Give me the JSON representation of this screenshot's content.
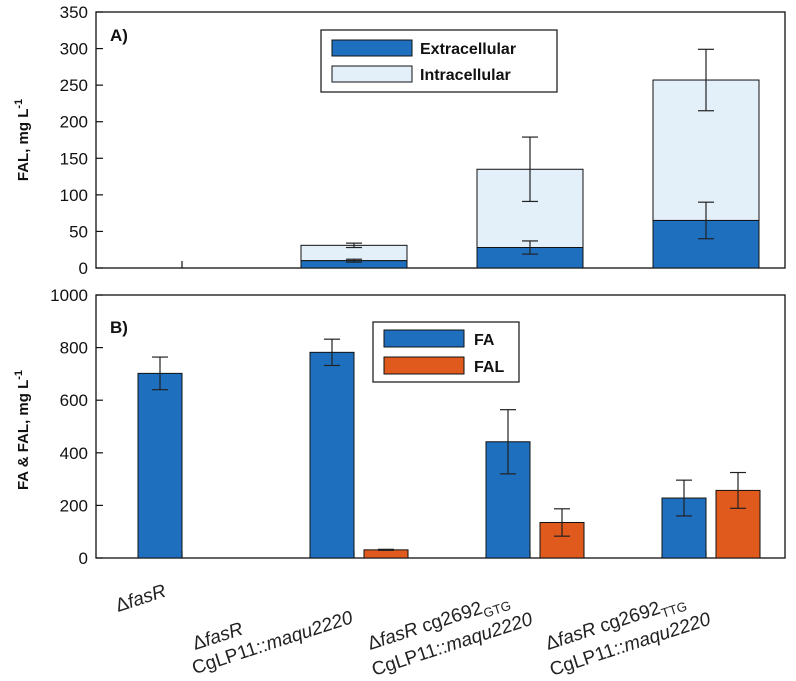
{
  "colors": {
    "fa": "#1f6fbf",
    "fal": "#e05a1e",
    "extracellular": "#1f6fbf",
    "intracellular": "#e3eff9",
    "axis": "#111111"
  },
  "categories": [
    {
      "delta": "Δ",
      "name": "fasR",
      "line2a": "",
      "line2b": ""
    },
    {
      "delta": "Δ",
      "name": "fasR",
      "line2a": "CgLP11::",
      "line2b": "maqu2220"
    },
    {
      "delta": "Δ",
      "name": "fasR",
      "gene": " cg2692",
      "sub": "GTG",
      "line2a": "CgLP11::",
      "line2b": "maqu2220"
    },
    {
      "delta": "Δ",
      "name": "fasR",
      "gene": " cg2692",
      "sub": "TTG",
      "line2a": "CgLP11::",
      "line2b": "maqu2220"
    }
  ],
  "chart_data": [
    {
      "type": "bar",
      "stacked": true,
      "panel_label": "A)",
      "ylabel": "FAL,   mg L",
      "ylabel_sup": "-1",
      "ylim": [
        0,
        350
      ],
      "yticks": [
        0,
        50,
        100,
        150,
        200,
        250,
        300,
        350
      ],
      "legend_position": "top-center",
      "series": [
        {
          "name": "Extracellular",
          "values": [
            0,
            10,
            28,
            65
          ],
          "err": [
            0,
            2,
            9,
            25
          ]
        },
        {
          "name": "Intracellular",
          "values": [
            0,
            21,
            107,
            192
          ],
          "err": [
            0,
            3,
            44,
            42
          ]
        }
      ]
    },
    {
      "type": "bar",
      "stacked": false,
      "panel_label": "B)",
      "ylabel": "FA & FAL,  mg L",
      "ylabel_sup": "-1",
      "ylim": [
        0,
        1000
      ],
      "yticks": [
        0,
        200,
        400,
        600,
        800,
        1000
      ],
      "legend_position": "top-center",
      "series": [
        {
          "name": "FA",
          "values": [
            702,
            782,
            442,
            228
          ],
          "err": [
            62,
            50,
            122,
            68
          ]
        },
        {
          "name": "FAL",
          "values": [
            0,
            31,
            135,
            257
          ],
          "err": [
            0,
            2,
            52,
            68
          ]
        }
      ]
    }
  ]
}
